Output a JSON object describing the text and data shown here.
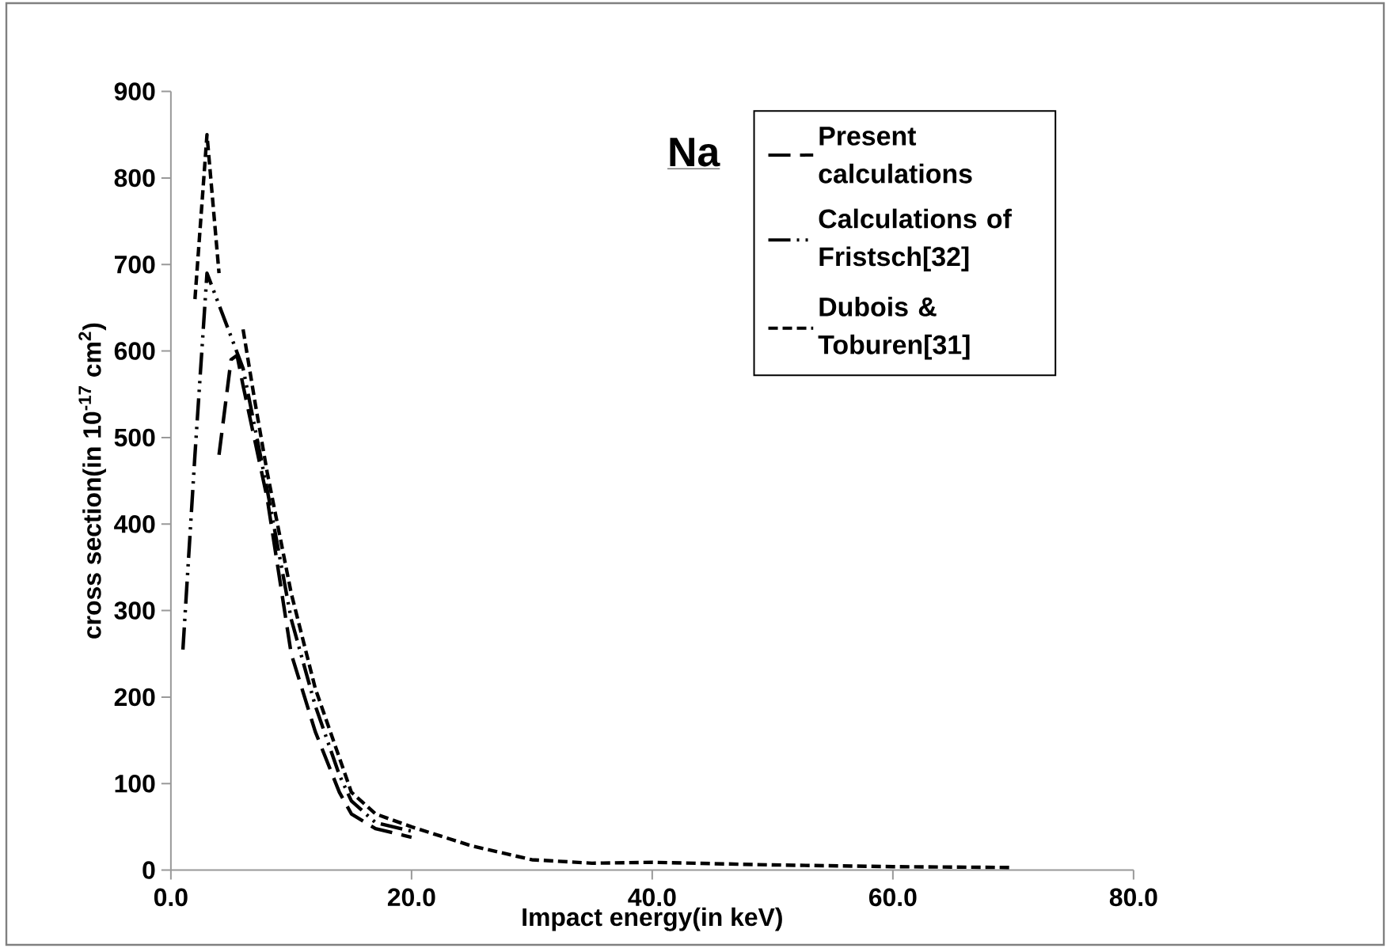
{
  "chart_data": {
    "type": "line",
    "title": "Na",
    "xlabel": "Impact energy(in keV)",
    "ylabel": "cross section(in 10$^{-17}$ cm$^{2}$)",
    "xlim": [
      0,
      80
    ],
    "ylim": [
      0,
      900
    ],
    "xticks": [
      {
        "value": 0,
        "label": "0.0"
      },
      {
        "value": 20,
        "label": "20.0"
      },
      {
        "value": 40,
        "label": "40.0"
      },
      {
        "value": 60,
        "label": "60.0"
      },
      {
        "value": 80,
        "label": "80.0"
      }
    ],
    "yticks": [
      0,
      100,
      200,
      300,
      400,
      500,
      600,
      700,
      800,
      900
    ],
    "grid": false,
    "legend": "top right",
    "marker": "none",
    "line_style": "dashed",
    "series": [
      {
        "name": "Present calculations",
        "color": "#000000",
        "x": [
          4,
          5,
          5.5,
          6,
          8,
          10,
          12,
          14,
          15,
          17,
          20
        ],
        "values": [
          480,
          590,
          595,
          560,
          430,
          250,
          160,
          90,
          65,
          48,
          38
        ]
      },
      {
        "name": "Calculations of Fristsch[32]",
        "color": "#000000",
        "x": [
          1,
          2,
          3,
          6,
          8,
          10,
          12,
          14,
          15,
          17,
          20
        ],
        "values": [
          255,
          480,
          690,
          580,
          440,
          290,
          190,
          110,
          80,
          55,
          45
        ]
      },
      {
        "name": "Dubois & Toburen[31]",
        "color": "#000000",
        "x": [
          2,
          3,
          4,
          5,
          6,
          7,
          8,
          10,
          12,
          14,
          15,
          17,
          20,
          25,
          30,
          35,
          40,
          50,
          60,
          70
        ],
        "values": [
          660,
          850,
          690,
          null,
          625,
          540,
          460,
          320,
          210,
          130,
          90,
          65,
          50,
          28,
          12,
          8,
          9,
          6,
          4,
          3
        ]
      }
    ]
  }
}
